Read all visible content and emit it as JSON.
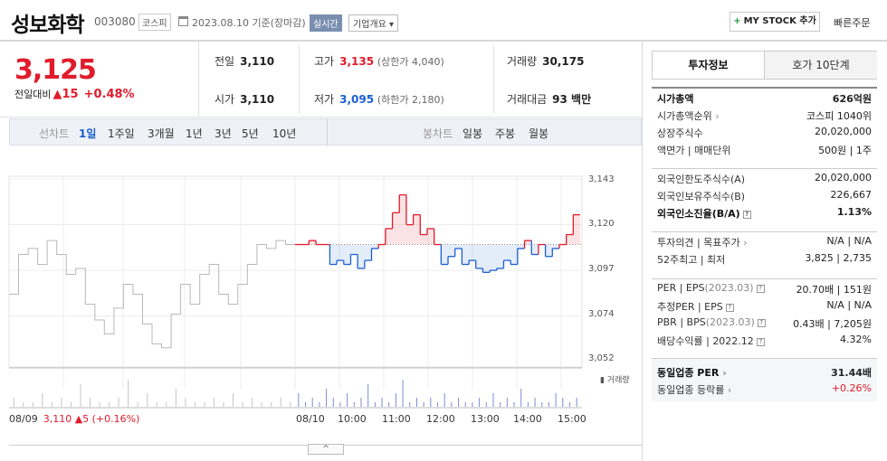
{
  "header": {
    "stock_name": "성보화학",
    "stock_code": "003080",
    "market": "코스피",
    "date_text": "2023.08.10  기준(장마감)",
    "realtime_label": "실시간",
    "company_button": "기업개요 ▾",
    "mystock_button": "MY STOCK 추가",
    "quick_order": "빠른주문"
  },
  "price": {
    "current": "3,125",
    "change_label": "전일대비",
    "change_amount": "▲15",
    "change_rate": "+0.48%"
  },
  "quote": {
    "prev_close_label": "전일",
    "prev_close": "3,110",
    "high_label": "고가",
    "high": "3,135",
    "upper_limit": "(상한가 4,040)",
    "volume_label": "거래량",
    "volume": "30,175",
    "open_label": "시가",
    "open": "3,110",
    "low_label": "저가",
    "low": "3,095",
    "lower_limit": "(하한가 2,180)",
    "amount_label": "거래대금",
    "amount": "93 백만"
  },
  "toolbar": {
    "line_chart_label": "선차트",
    "periods": [
      "1일",
      "1주일",
      "3개월",
      "1년",
      "3년",
      "5년",
      "10년"
    ],
    "candle_chart_label": "봉차트",
    "candles": [
      "일봉",
      "주봉",
      "월봉"
    ]
  },
  "chart_data": {
    "type": "line",
    "y_ticks": [
      "3,143",
      "3,120",
      "3,097",
      "3,074",
      "3,052"
    ],
    "ylim": [
      3052,
      3143
    ],
    "x_ticks": [
      "08/10",
      "10:00",
      "11:00",
      "12:00",
      "13:00",
      "14:00",
      "15:00"
    ],
    "baseline": 3110,
    "prev_day": {
      "date": "08/09",
      "close_text": "3,110 ▲5 (+0.16%)",
      "values": [
        3085,
        3105,
        3108,
        3100,
        3112,
        3105,
        3095,
        3098,
        3080,
        3072,
        3065,
        3078,
        3090,
        3085,
        3070,
        3060,
        3058,
        3075,
        3090,
        3080,
        3095,
        3100,
        3085,
        3080,
        3090,
        3100,
        3110,
        3108,
        3112,
        3110
      ]
    },
    "today": {
      "values": [
        3110,
        3110,
        3112,
        3110,
        3110,
        3100,
        3102,
        3100,
        3105,
        3098,
        3102,
        3108,
        3110,
        3118,
        3126,
        3135,
        3120,
        3125,
        3115,
        3118,
        3110,
        3100,
        3104,
        3108,
        3100,
        3102,
        3098,
        3096,
        3097,
        3098,
        3102,
        3100,
        3108,
        3112,
        3105,
        3110,
        3104,
        3108,
        3110,
        3115,
        3125
      ]
    },
    "volume_label": "거래량",
    "volume_prev": [
      2,
      1,
      1,
      3,
      1,
      2,
      1,
      5,
      2,
      1,
      1,
      2,
      6,
      1,
      3,
      1,
      1,
      4,
      2,
      1,
      1,
      2,
      1,
      3,
      1,
      2,
      1,
      1,
      2,
      1
    ],
    "volume_today": [
      3,
      1,
      2,
      1,
      4,
      2,
      1,
      3,
      1,
      2,
      5,
      1,
      2,
      1,
      3,
      6,
      1,
      2,
      1,
      2,
      1,
      3,
      1,
      2,
      1,
      1,
      2,
      1,
      3,
      1,
      2,
      1,
      4,
      1,
      2,
      1,
      1,
      3,
      2,
      1,
      2
    ]
  },
  "side_tabs": [
    "투자정보",
    "호가 10단계"
  ],
  "investment_info": {
    "group1": [
      {
        "k": "시가총액",
        "v": "626억원"
      },
      {
        "k": "시가총액순위",
        "v": "코스피 1040위"
      },
      {
        "k": "상장주식수",
        "v": "20,020,000"
      },
      {
        "k": "액면가 | 매매단위",
        "v": "500원 | 1주"
      }
    ],
    "group2": [
      {
        "k": "외국인한도주식수(A)",
        "v": "20,020,000"
      },
      {
        "k": "외국인보유주식수(B)",
        "v": "226,667"
      },
      {
        "k": "외국인소진율(B/A)",
        "v": "1.13%"
      }
    ],
    "group3": [
      {
        "k": "투자의견 | 목표주가",
        "v": "N/A | N/A"
      },
      {
        "k": "52주최고 | 최저",
        "v": "3,825 | 2,735"
      }
    ],
    "group4": [
      {
        "k": "PER | EPS",
        "kx": "(2023.03)",
        "v": "20.70배 | 151원"
      },
      {
        "k": "추정PER | EPS",
        "v": "N/A | N/A"
      },
      {
        "k": "PBR | BPS",
        "kx": "(2023.03)",
        "v": "0.43배 | 7,205원"
      },
      {
        "k": "배당수익률 |",
        "kx": "2022.12",
        "v": "4.32%"
      }
    ],
    "group5": [
      {
        "k": "동일업종 PER",
        "v": "31.44배"
      },
      {
        "k": "동일업종 등락률",
        "v": "+0.26%"
      }
    ]
  },
  "colors": {
    "up": "#e01b2b",
    "down": "#1b5fd1",
    "prev_line": "#b8b8b8"
  }
}
